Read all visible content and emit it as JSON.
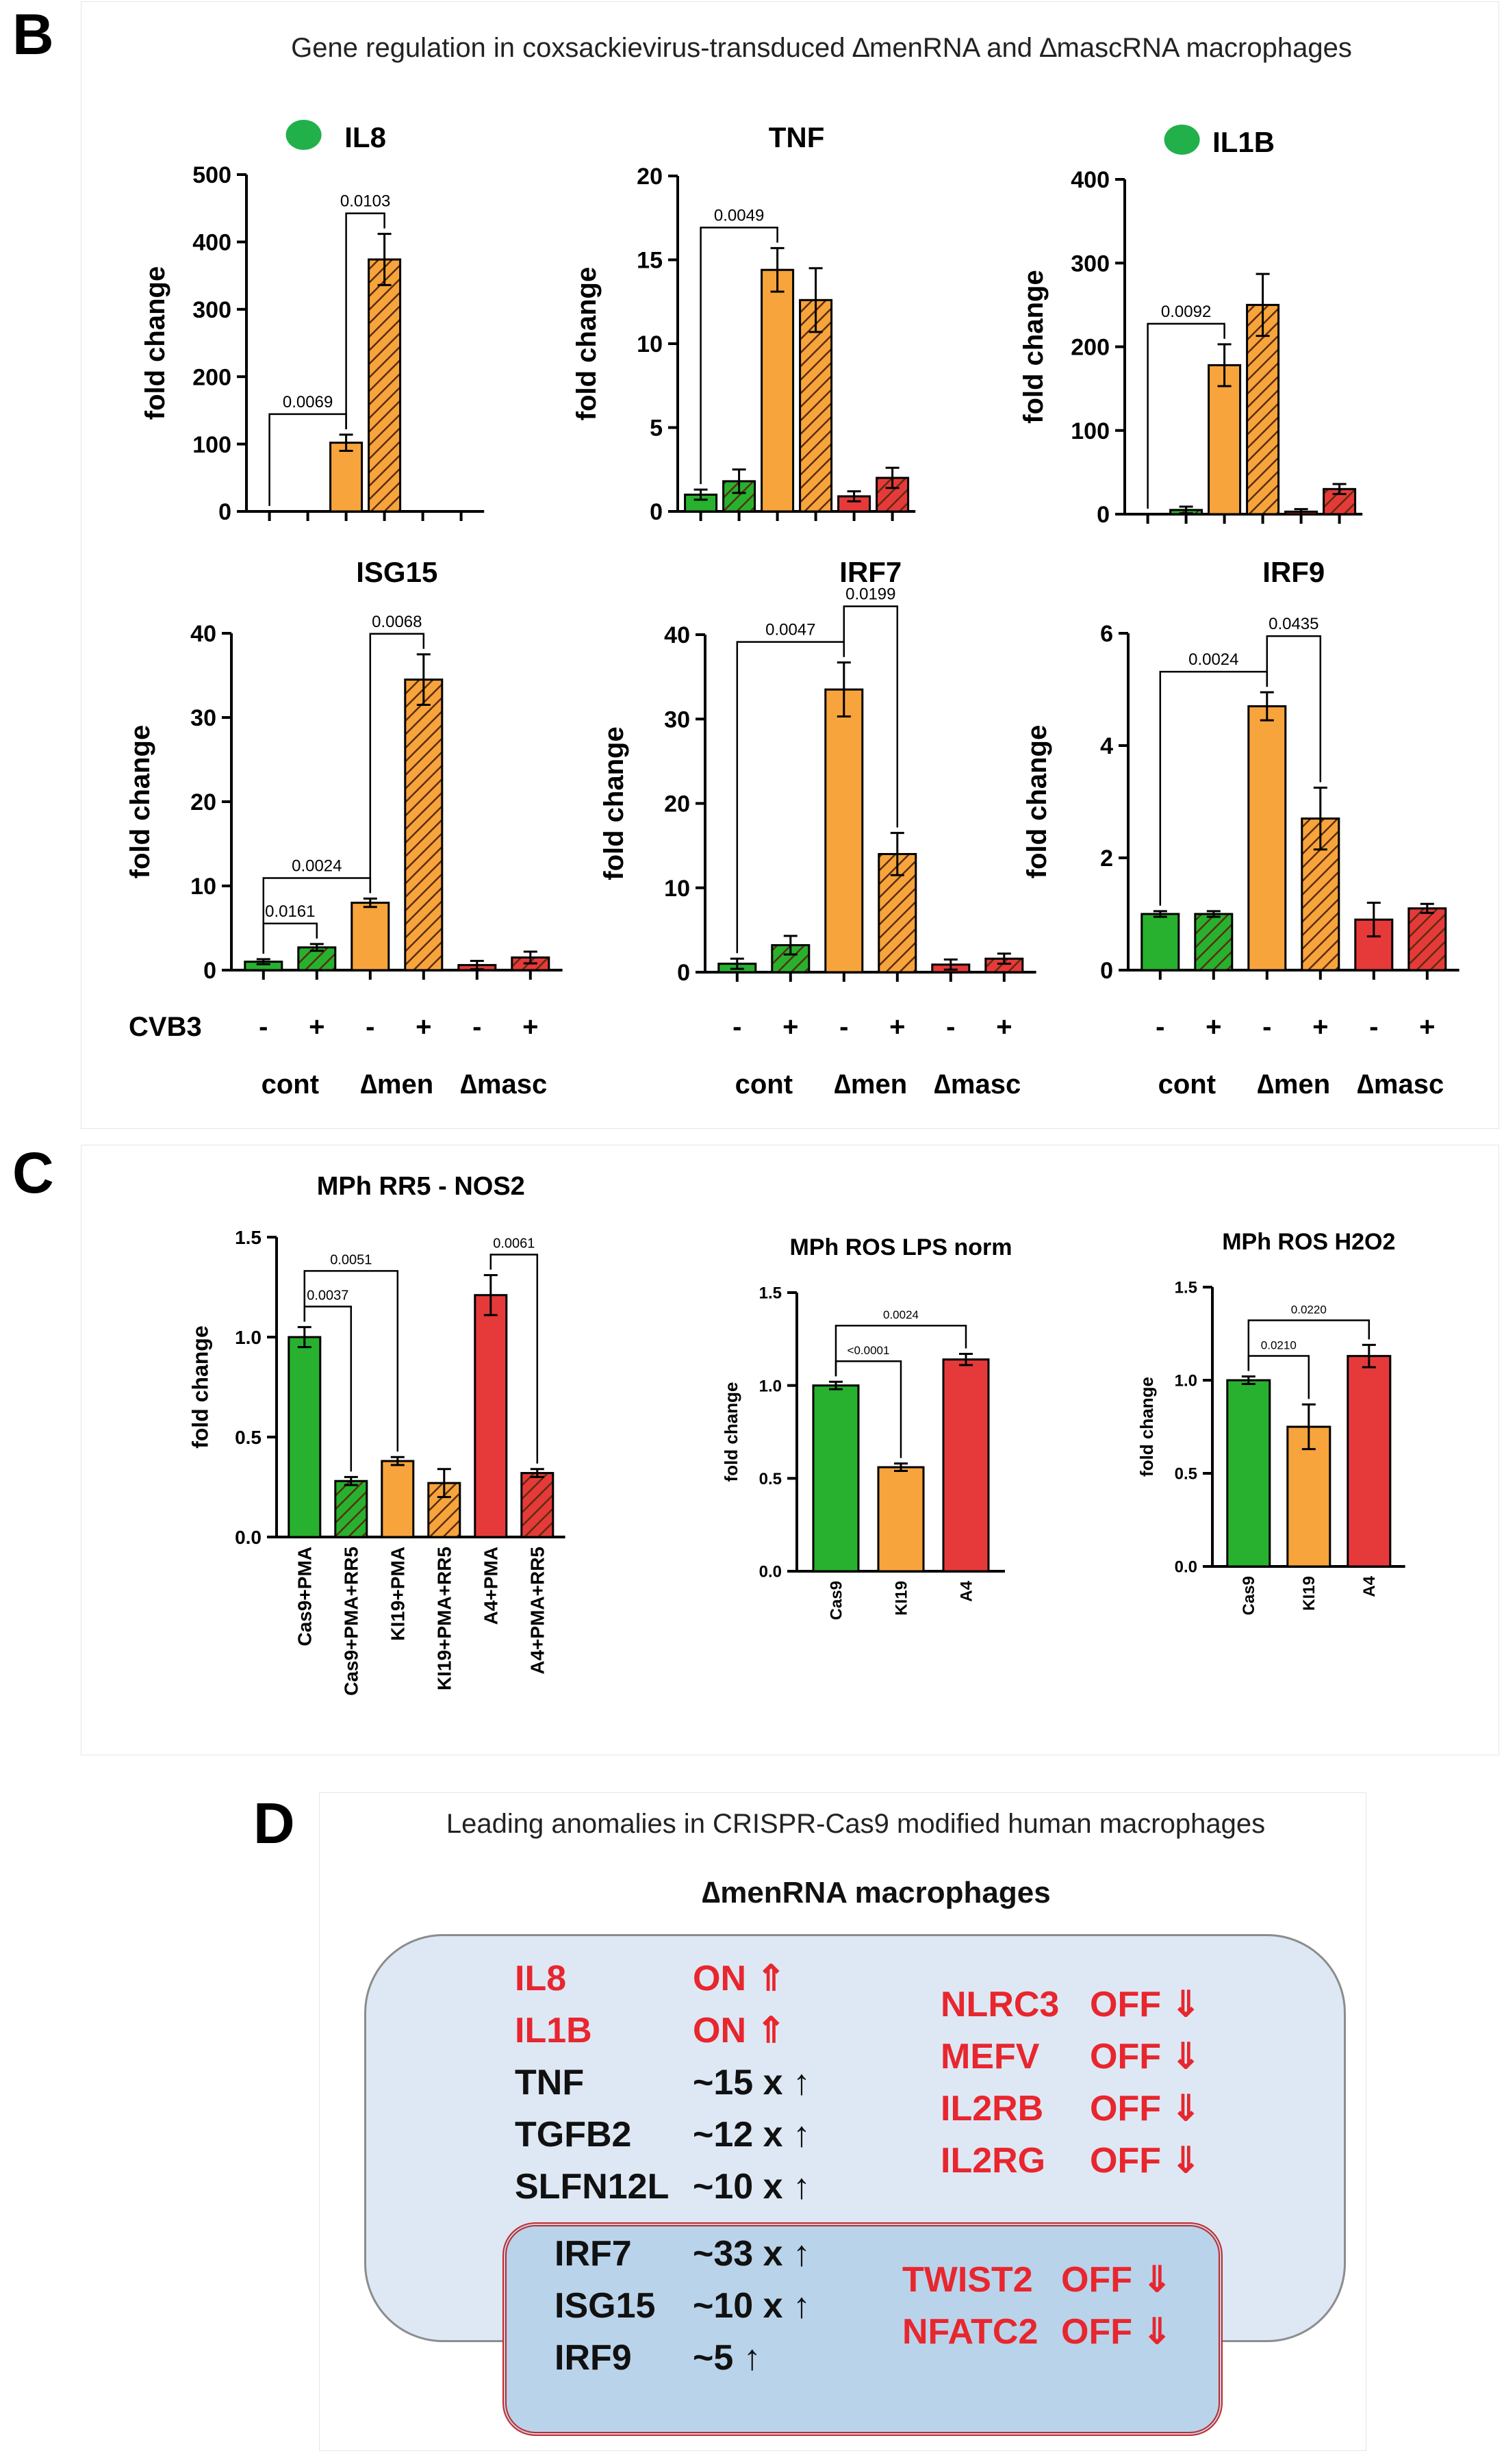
{
  "panels": {
    "B": {
      "letter": "B",
      "title": "Gene regulation in coxsackievirus-transduced ∆menRNA and ∆mascRNA macrophages",
      "x_group_labels": [
        "cont",
        "∆men",
        "∆masc"
      ],
      "cvb3_label": "CVB3",
      "cvb3_signs": [
        "-",
        "+",
        "-",
        "+",
        "-",
        "+"
      ]
    },
    "C": {
      "letter": "C"
    },
    "D": {
      "letter": "D",
      "title": "Leading anomalies in CRISPR-Cas9 modified human macrophages",
      "subtitle": "∆menRNA macrophages",
      "outer_left": [
        {
          "gene": "IL8",
          "value": "ON ⇑",
          "color": "red"
        },
        {
          "gene": "IL1B",
          "value": "ON ⇑",
          "color": "red"
        },
        {
          "gene": "TNF",
          "value": "~15 x ↑",
          "color": "black"
        },
        {
          "gene": "TGFB2",
          "value": "~12 x ↑",
          "color": "black"
        },
        {
          "gene": "SLFN12L",
          "value": "~10 x ↑",
          "color": "black"
        }
      ],
      "outer_right": [
        {
          "gene": "NLRC3",
          "value": "OFF ⇓"
        },
        {
          "gene": "MEFV",
          "value": "OFF ⇓"
        },
        {
          "gene": "IL2RB",
          "value": "OFF ⇓"
        },
        {
          "gene": "IL2RG",
          "value": "OFF ⇓"
        }
      ],
      "inner_left": [
        {
          "gene": "IRF7",
          "value": "~33 x ↑"
        },
        {
          "gene": "ISG15",
          "value": "~10 x ↑"
        },
        {
          "gene": "IRF9",
          "value": "~5 ↑"
        }
      ],
      "inner_right": [
        {
          "gene": "TWIST2",
          "value": "OFF ⇓"
        },
        {
          "gene": "NFATC2",
          "value": "OFF ⇓"
        }
      ]
    }
  },
  "colors": {
    "green": "#28b12e",
    "orange": "#f7a43c",
    "red": "#e63a3a",
    "axis": "#000000",
    "outer_box": "#dde8f4",
    "inner_box": "#b9d3ea",
    "text_red": "#e8262e"
  },
  "chart_data": [
    {
      "type": "bar",
      "title": "IL8",
      "ylabel": "fold change",
      "ylim": [
        0,
        500
      ],
      "yticks": [
        0,
        100,
        200,
        300,
        400,
        500
      ],
      "marker": "green-dot",
      "values": [
        0,
        0,
        102,
        374,
        0,
        0
      ],
      "errors": [
        0,
        0,
        12,
        38,
        0,
        0
      ],
      "colors": [
        "green",
        "green",
        "orange",
        "orange",
        "red",
        "red"
      ],
      "hatched": [
        false,
        true,
        false,
        true,
        false,
        true
      ],
      "annotations": [
        {
          "from": 0,
          "to": 2,
          "label": "0.0069"
        },
        {
          "from": 2,
          "to": 3,
          "label": "0.0103"
        }
      ]
    },
    {
      "type": "bar",
      "title": "TNF",
      "ylabel": "fold change",
      "ylim": [
        0,
        20
      ],
      "yticks": [
        0,
        5,
        10,
        15,
        20
      ],
      "values": [
        1.0,
        1.8,
        14.4,
        12.6,
        0.9,
        2.0
      ],
      "errors": [
        0.3,
        0.7,
        1.3,
        1.9,
        0.3,
        0.6
      ],
      "colors": [
        "green",
        "green",
        "orange",
        "orange",
        "red",
        "red"
      ],
      "hatched": [
        false,
        true,
        false,
        true,
        false,
        true
      ],
      "annotations": [
        {
          "from": 0,
          "to": 2,
          "label": "0.0049"
        }
      ]
    },
    {
      "type": "bar",
      "title": "IL1B",
      "ylabel": "fold change",
      "ylim": [
        0,
        400
      ],
      "yticks": [
        0,
        100,
        200,
        300,
        400
      ],
      "marker": "green-dot",
      "values": [
        0,
        5,
        178,
        250,
        3,
        30
      ],
      "errors": [
        0,
        4,
        25,
        37,
        3,
        6
      ],
      "colors": [
        "green",
        "green",
        "orange",
        "orange",
        "red",
        "red"
      ],
      "hatched": [
        false,
        true,
        false,
        true,
        false,
        true
      ],
      "annotations": [
        {
          "from": 0,
          "to": 2,
          "label": "0.0092"
        }
      ]
    },
    {
      "type": "bar",
      "title": "ISG15",
      "ylabel": "fold change",
      "ylim": [
        0,
        40
      ],
      "yticks": [
        0,
        10,
        20,
        30,
        40
      ],
      "values": [
        1.0,
        2.7,
        8.0,
        34.5,
        0.6,
        1.5
      ],
      "errors": [
        0.3,
        0.4,
        0.5,
        3.0,
        0.5,
        0.7
      ],
      "colors": [
        "green",
        "green",
        "orange",
        "orange",
        "red",
        "red"
      ],
      "hatched": [
        false,
        true,
        false,
        true,
        false,
        true
      ],
      "annotations": [
        {
          "from": 0,
          "to": 1,
          "label": "0.0161"
        },
        {
          "from": 0,
          "to": 2,
          "label": "0.0024"
        },
        {
          "from": 2,
          "to": 3,
          "label": "0.0068"
        }
      ]
    },
    {
      "type": "bar",
      "title": "IRF7",
      "ylabel": "fold change",
      "ylim": [
        0,
        40
      ],
      "yticks": [
        0,
        10,
        20,
        30,
        40
      ],
      "values": [
        1.0,
        3.2,
        33.5,
        14.0,
        0.9,
        1.6
      ],
      "errors": [
        0.6,
        1.1,
        3.2,
        2.5,
        0.6,
        0.6
      ],
      "colors": [
        "green",
        "green",
        "orange",
        "orange",
        "red",
        "red"
      ],
      "hatched": [
        false,
        true,
        false,
        true,
        false,
        true
      ],
      "annotations": [
        {
          "from": 0,
          "to": 2,
          "label": "0.0047"
        },
        {
          "from": 2,
          "to": 3,
          "label": "0.0199"
        }
      ]
    },
    {
      "type": "bar",
      "title": "IRF9",
      "ylabel": "fold change",
      "ylim": [
        0,
        6
      ],
      "yticks": [
        0,
        2,
        4,
        6
      ],
      "values": [
        1.0,
        1.0,
        4.7,
        2.7,
        0.9,
        1.1
      ],
      "errors": [
        0.05,
        0.05,
        0.25,
        0.55,
        0.3,
        0.08
      ],
      "colors": [
        "green",
        "green",
        "orange",
        "orange",
        "red",
        "red"
      ],
      "hatched": [
        false,
        true,
        false,
        true,
        false,
        true
      ],
      "annotations": [
        {
          "from": 0,
          "to": 2,
          "label": "0.0024"
        },
        {
          "from": 2,
          "to": 3,
          "label": "0.0435"
        }
      ]
    },
    {
      "type": "bar",
      "title": "MPh RR5 - NOS2",
      "ylabel": "fold change",
      "ylim": [
        0,
        1.5
      ],
      "yticks": [
        "0.0",
        "0.5",
        "1.0",
        "1.5"
      ],
      "categories": [
        "Cas9+PMA",
        "Cas9+PMA+RR5",
        "KI19+PMA",
        "KI19+PMA+RR5",
        "A4+PMA",
        "A4+PMA+RR5"
      ],
      "values": [
        1.0,
        0.28,
        0.38,
        0.27,
        1.21,
        0.32
      ],
      "errors": [
        0.05,
        0.02,
        0.02,
        0.07,
        0.1,
        0.02
      ],
      "colors": [
        "green",
        "green",
        "orange",
        "orange",
        "red",
        "red"
      ],
      "hatched": [
        false,
        true,
        false,
        true,
        false,
        true
      ],
      "annotations": [
        {
          "from": 0,
          "to": 1,
          "label": "0.0037"
        },
        {
          "from": 0,
          "to": 2,
          "label": "0.0051"
        },
        {
          "from": 4,
          "to": 5,
          "label": "0.0061"
        }
      ]
    },
    {
      "type": "bar",
      "title": "MPh ROS LPS norm",
      "ylabel": "fold change",
      "ylim": [
        0,
        1.5
      ],
      "yticks": [
        "0.0",
        "0.5",
        "1.0",
        "1.5"
      ],
      "categories": [
        "Cas9",
        "KI19",
        "A4"
      ],
      "values": [
        1.0,
        0.56,
        1.14
      ],
      "errors": [
        0.02,
        0.02,
        0.03
      ],
      "colors": [
        "green",
        "orange",
        "red"
      ],
      "hatched": [
        false,
        false,
        false
      ],
      "annotations": [
        {
          "from": 0,
          "to": 1,
          "label": "<0.0001"
        },
        {
          "from": 0,
          "to": 2,
          "label": "0.0024"
        }
      ]
    },
    {
      "type": "bar",
      "title": "MPh ROS H2O2",
      "ylabel": "fold change",
      "ylim": [
        0,
        1.5
      ],
      "yticks": [
        "0.0",
        "0.5",
        "1.0",
        "1.5"
      ],
      "categories": [
        "Cas9",
        "KI19",
        "A4"
      ],
      "values": [
        1.0,
        0.75,
        1.13
      ],
      "errors": [
        0.02,
        0.12,
        0.06
      ],
      "colors": [
        "green",
        "orange",
        "red"
      ],
      "hatched": [
        false,
        false,
        false
      ],
      "annotations": [
        {
          "from": 0,
          "to": 1,
          "label": "0.0210"
        },
        {
          "from": 0,
          "to": 2,
          "label": "0.0220"
        }
      ]
    }
  ]
}
